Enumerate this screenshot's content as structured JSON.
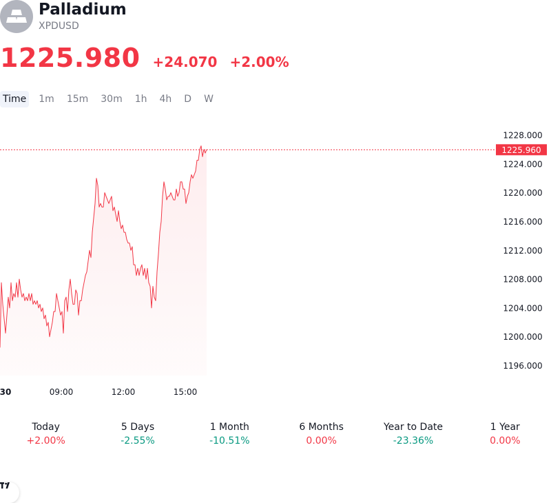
{
  "header": {
    "name": "Palladium",
    "symbol": "XPDUSD",
    "logo_icon": "silver-bars-icon"
  },
  "quote": {
    "price": "1225.980",
    "change": "+24.070",
    "change_pct": "+2.00%"
  },
  "intervals": [
    "Time",
    "1m",
    "15m",
    "30m",
    "1h",
    "4h",
    "D",
    "W"
  ],
  "active_interval": "Time",
  "chart_data": {
    "type": "area",
    "x_ticks": [
      "30",
      "09:00",
      "12:00",
      "15:00"
    ],
    "y_ticks": [
      "1228.000",
      "1224.000",
      "1220.000",
      "1216.000",
      "1212.000",
      "1208.000",
      "1204.000",
      "1200.000",
      "1196.000"
    ],
    "ylim": [
      1196,
      1228
    ],
    "last_value": 1225.96,
    "last_value_label": "1225.960",
    "series": [
      {
        "color": "#f23645",
        "x": [
          0,
          2,
          4,
          6,
          8,
          10,
          12,
          14,
          16,
          18,
          20,
          22,
          24,
          26,
          28,
          30,
          32,
          34,
          36,
          38,
          40,
          42,
          44,
          46,
          48,
          50,
          52,
          54,
          56,
          58,
          60,
          62,
          64,
          66,
          68,
          70,
          72,
          74,
          76,
          78,
          80,
          82,
          84,
          86,
          88,
          90,
          92,
          94,
          96,
          98,
          100,
          102,
          104,
          106,
          108,
          110,
          112,
          114,
          116,
          118,
          120,
          122,
          124,
          126,
          128,
          130,
          132,
          134,
          136,
          138,
          140,
          142,
          144,
          146,
          148,
          150,
          152,
          154,
          156,
          158,
          160,
          162,
          164,
          166,
          168,
          170,
          172,
          174,
          176,
          178,
          180,
          182,
          184,
          186,
          188,
          190,
          192,
          194,
          196,
          198,
          200,
          202,
          204,
          206,
          208,
          210,
          212,
          214,
          216,
          218,
          220,
          222,
          224,
          226,
          228,
          230,
          232,
          234,
          236,
          238,
          240,
          242,
          244,
          246,
          248,
          250,
          252,
          254,
          256,
          258,
          260,
          262,
          264,
          266,
          268,
          270,
          272,
          274,
          276,
          278,
          280,
          282,
          284,
          286,
          288,
          290,
          292,
          294,
          296,
          298,
          300
        ],
        "values": [
          1198.5,
          1207.5,
          1204.5,
          1202.5,
          1200.5,
          1203.0,
          1205.5,
          1204.0,
          1207.5,
          1205.0,
          1206.0,
          1205.5,
          1207.5,
          1205.5,
          1208.0,
          1206.5,
          1205.5,
          1206.0,
          1205.0,
          1205.5,
          1205.0,
          1206.0,
          1205.0,
          1206.0,
          1204.5,
          1205.0,
          1204.5,
          1205.0,
          1204.0,
          1204.5,
          1203.5,
          1204.0,
          1202.5,
          1203.0,
          1201.5,
          1202.0,
          1200.0,
          1201.0,
          1202.0,
          1203.5,
          1203.5,
          1206.0,
          1205.0,
          1204.0,
          1203.0,
          1203.5,
          1200.5,
          1205.0,
          1205.5,
          1203.5,
          1206.5,
          1208.0,
          1206.0,
          1204.5,
          1204.5,
          1206.5,
          1206.0,
          1203.0,
          1205.0,
          1205.0,
          1206.5,
          1207.5,
          1208.5,
          1209.0,
          1210.5,
          1212.0,
          1211.0,
          1214.5,
          1216.5,
          1218.5,
          1222.0,
          1221.0,
          1218.0,
          1218.5,
          1218.0,
          1218.0,
          1220.0,
          1219.5,
          1219.0,
          1218.5,
          1219.0,
          1219.5,
          1217.5,
          1218.0,
          1217.0,
          1216.0,
          1217.5,
          1216.0,
          1215.0,
          1215.5,
          1214.5,
          1214.5,
          1213.5,
          1213.0,
          1213.0,
          1212.0,
          1212.5,
          1210.0,
          1210.0,
          1208.5,
          1209.5,
          1208.5,
          1209.5,
          1210.0,
          1208.5,
          1209.5,
          1208.0,
          1209.5,
          1207.5,
          1207.0,
          1204.0,
          1207.0,
          1205.5,
          1205.0,
          1209.0,
          1211.5,
          1214.5,
          1216.0,
          1219.5,
          1221.5,
          1220.5,
          1219.0,
          1219.5,
          1219.5,
          1220.0,
          1219.5,
          1219.0,
          1219.0,
          1220.5,
          1219.5,
          1220.0,
          1221.5,
          1221.5,
          1220.5,
          1220.5,
          1218.5,
          1219.5,
          1220.0,
          1221.5,
          1222.5,
          1222.0,
          1222.5,
          1223.0,
          1224.5,
          1224.5,
          1226.0,
          1226.5,
          1225.0,
          1226.0,
          1225.5,
          1226.0
        ]
      }
    ]
  },
  "performance": [
    {
      "label": "Today",
      "value": "+2.00%",
      "color": "#f23645"
    },
    {
      "label": "5 Days",
      "value": "-2.55%",
      "color": "#089981"
    },
    {
      "label": "1 Month",
      "value": "-10.51%",
      "color": "#089981"
    },
    {
      "label": "6 Months",
      "value": "0.00%",
      "color": "#f23645"
    },
    {
      "label": "Year to Date",
      "value": "-23.36%",
      "color": "#089981"
    },
    {
      "label": "1 Year",
      "value": "0.00%",
      "color": "#f23645"
    }
  ],
  "colors": {
    "up": "#f23645",
    "down": "#089981",
    "muted": "#787b86"
  },
  "branding": {
    "chart_logo": "TV",
    "chart_logo_icon": "tradingview-logo-icon"
  }
}
